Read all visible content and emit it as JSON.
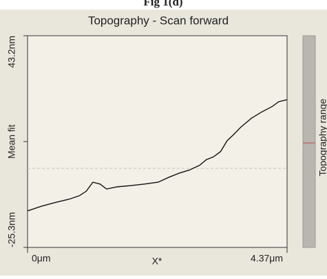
{
  "figure_label": "Fig 1(d)",
  "chart_data": {
    "type": "line",
    "title": "Topography - Scan forward",
    "xlabel": "X*",
    "ylabel": "Mean fit",
    "colorbar_label": "Topography range",
    "color": "#111111",
    "xlim": [
      0,
      4.37
    ],
    "ylim": [
      -25.3,
      43.2
    ],
    "xticks": [
      {
        "value": 0,
        "label": "0μm"
      },
      {
        "value": 4.37,
        "label": "4.37μm"
      }
    ],
    "yticks": [
      {
        "value": -25.3,
        "label": "-25.3nm"
      },
      {
        "value": 43.2,
        "label": "43.2nm"
      }
    ],
    "x": [
      0,
      0.23,
      0.46,
      0.7,
      0.87,
      0.99,
      1.1,
      1.22,
      1.33,
      1.51,
      1.74,
      1.97,
      2.2,
      2.38,
      2.55,
      2.72,
      2.9,
      3.01,
      3.13,
      3.25,
      3.36,
      3.48,
      3.59,
      3.77,
      3.94,
      4.12,
      4.23,
      4.37
    ],
    "values": [
      -13.5,
      -12.0,
      -10.8,
      -9.7,
      -8.6,
      -7.1,
      -4.2,
      -4.8,
      -6.4,
      -5.7,
      -5.3,
      -4.8,
      -4.2,
      -2.6,
      -1.3,
      -0.3,
      1.3,
      3.1,
      4.0,
      5.7,
      9.2,
      11.4,
      13.6,
      16.5,
      18.5,
      20.3,
      21.85,
      22.5
    ]
  }
}
